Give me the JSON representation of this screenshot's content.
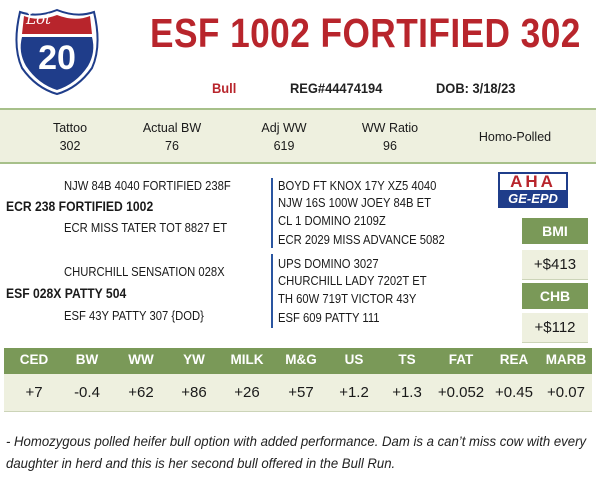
{
  "lot": {
    "label": "Lot",
    "number": "20"
  },
  "title": "ESF 1002 FORTIFIED 302",
  "sex": "Bull",
  "reg": "REG#44474194",
  "dob": "DOB: 3/18/23",
  "stats": [
    {
      "label": "Tattoo",
      "value": "302"
    },
    {
      "label": "Actual BW",
      "value": "76"
    },
    {
      "label": "Adj WW",
      "value": "619"
    },
    {
      "label": "WW Ratio",
      "value": "96"
    },
    {
      "label": "Homo-Polled",
      "value": ""
    }
  ],
  "pedigree": {
    "sire": "ECR 238 FORTIFIED 1002",
    "sire_sire": "NJW 84B 4040 FORTIFIED 238F",
    "sire_dam": "ECR MISS TATER TOT 8827 ET",
    "sire_sire_sire": "BOYD FT KNOX 17Y XZ5 4040",
    "sire_sire_dam": "NJW 16S 100W JOEY 84B ET",
    "sire_dam_sire": "CL 1 DOMINO 2109Z",
    "sire_dam_dam": "ECR 2029 MISS ADVANCE 5082",
    "dam": "ESF 028X PATTY 504",
    "dam_sire": "CHURCHILL SENSATION 028X",
    "dam_dam": "ESF 43Y PATTY 307 {DOD}",
    "dam_sire_sire": "UPS DOMINO 3027",
    "dam_sire_dam": "CHURCHILL LADY 7202T ET",
    "dam_dam_sire": "TH 60W 719T VICTOR 43Y",
    "dam_dam_dam": "ESF 609 PATTY 111"
  },
  "logo": {
    "top": "AHA",
    "bottom": "GE-EPD"
  },
  "indexes": [
    {
      "label": "BMI",
      "value": "+$413"
    },
    {
      "label": "CHB",
      "value": "+$112"
    }
  ],
  "epds": [
    {
      "label": "CED",
      "value": "+7"
    },
    {
      "label": "BW",
      "value": "-0.4"
    },
    {
      "label": "WW",
      "value": "+62"
    },
    {
      "label": "YW",
      "value": "+86"
    },
    {
      "label": "MILK",
      "value": "+26"
    },
    {
      "label": "M&G",
      "value": "+57"
    },
    {
      "label": "US",
      "value": "+1.2"
    },
    {
      "label": "TS",
      "value": "+1.3"
    },
    {
      "label": "FAT",
      "value": "+0.052"
    },
    {
      "label": "REA",
      "value": "+0.45"
    },
    {
      "label": "MARB",
      "value": "+0.07"
    }
  ],
  "note": "- Homozygous polled heifer bull option with added performance.  Dam is a can’t miss cow with every daughter in herd and this is her second bull offered in the Bull Run.",
  "colors": {
    "red": "#b8252c",
    "green": "#7a9958",
    "lightgreen": "#eef0df",
    "blue": "#2a55a0"
  }
}
